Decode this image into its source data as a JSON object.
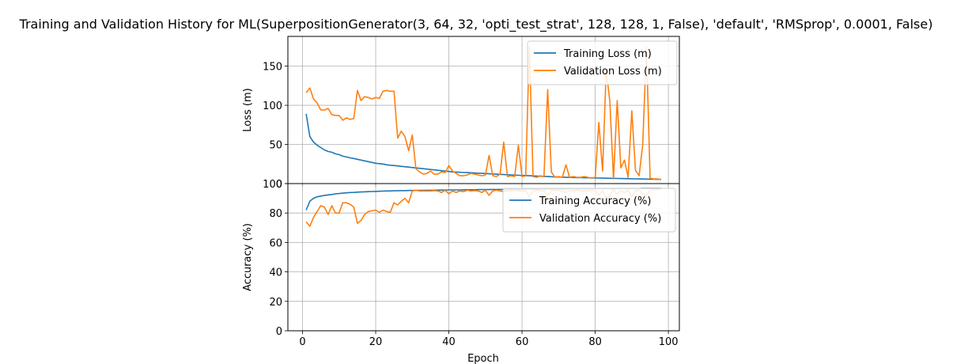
{
  "chart_data": [
    {
      "type": "line",
      "title": "Training and Validation History for ML(SuperpositionGenerator(3, 64, 32, 'opti_test_strat', 128, 128, 1, False), 'default', 'RMSprop', 0.0001, False)",
      "xlabel": "",
      "ylabel": "Loss (m)",
      "xlim": [
        -4,
        103
      ],
      "ylim": [
        0,
        188
      ],
      "xticks": [
        0,
        20,
        40,
        60,
        80,
        100
      ],
      "yticks": [
        0,
        50,
        100,
        150
      ],
      "show_xtick_labels": false,
      "grid": true,
      "legend": "top-right",
      "series": [
        {
          "name": "Training Loss (m)",
          "color": "#1f77b4",
          "x": [
            1,
            2,
            3,
            4,
            5,
            6,
            7,
            8,
            9,
            10,
            11,
            12,
            13,
            14,
            15,
            16,
            17,
            18,
            19,
            20,
            21,
            22,
            23,
            24,
            25,
            26,
            27,
            28,
            29,
            30,
            31,
            32,
            33,
            34,
            35,
            36,
            37,
            38,
            39,
            40,
            41,
            42,
            43,
            44,
            45,
            46,
            47,
            48,
            49,
            50,
            51,
            52,
            53,
            54,
            55,
            56,
            57,
            58,
            59,
            60,
            61,
            62,
            63,
            64,
            65,
            66,
            67,
            68,
            69,
            70,
            71,
            72,
            73,
            74,
            75,
            76,
            77,
            78,
            79,
            80,
            81,
            82,
            83,
            84,
            85,
            86,
            87,
            88,
            89,
            90,
            91,
            92,
            93,
            94,
            95,
            96,
            97,
            98
          ],
          "values": [
            89,
            60,
            53,
            49,
            46,
            43,
            41,
            40,
            38,
            37,
            35,
            34,
            33,
            32,
            31,
            30,
            29,
            28,
            27,
            26,
            25.5,
            25,
            24,
            23.5,
            23,
            22.5,
            22,
            21.5,
            21,
            20.5,
            20,
            19.5,
            19,
            18.5,
            18,
            17.5,
            17,
            16.5,
            16,
            15.5,
            15,
            14.8,
            14.5,
            14.2,
            14,
            13.8,
            13.5,
            13.2,
            13,
            12.8,
            12.5,
            12.2,
            12,
            11.8,
            11.5,
            11.3,
            11,
            10.8,
            10.6,
            10.4,
            10.2,
            10,
            9.8,
            9.6,
            9.4,
            9.2,
            9,
            8.8,
            8.6,
            8.4,
            8.2,
            8,
            7.9,
            7.8,
            7.7,
            7.6,
            7.5,
            7.4,
            7.3,
            7.2,
            7.1,
            7,
            6.9,
            6.8,
            6.7,
            6.6,
            6.5,
            6.4,
            6.3,
            6.2,
            6.1,
            6,
            5.9,
            5.8,
            5.7,
            5.6,
            5.5,
            5.4
          ]
        },
        {
          "name": "Validation Loss (m)",
          "color": "#ff7f0e",
          "x": [
            1,
            2,
            3,
            4,
            5,
            6,
            7,
            8,
            9,
            10,
            11,
            12,
            13,
            14,
            15,
            16,
            17,
            18,
            19,
            20,
            21,
            22,
            23,
            24,
            25,
            26,
            27,
            28,
            29,
            30,
            31,
            32,
            33,
            34,
            35,
            36,
            37,
            38,
            39,
            40,
            41,
            42,
            43,
            44,
            45,
            46,
            47,
            48,
            49,
            50,
            51,
            52,
            53,
            54,
            55,
            56,
            57,
            58,
            59,
            60,
            61,
            62,
            63,
            64,
            65,
            66,
            67,
            68,
            69,
            70,
            71,
            72,
            73,
            74,
            75,
            76,
            77,
            78,
            79,
            80,
            81,
            82,
            83,
            84,
            85,
            86,
            87,
            88,
            89,
            90,
            91,
            92,
            93,
            94,
            95,
            96,
            97,
            98
          ],
          "values": [
            116,
            122,
            108,
            103,
            94,
            94,
            96,
            88,
            87,
            87,
            81,
            84,
            82,
            83,
            119,
            106,
            111,
            110,
            108,
            110,
            109,
            118,
            119,
            118,
            118,
            58,
            67,
            60,
            42,
            62,
            19,
            15,
            12,
            13,
            16,
            12,
            12,
            15,
            14,
            23,
            16,
            13,
            10,
            10,
            11,
            13,
            12,
            11,
            10,
            11,
            36,
            10,
            9,
            12,
            53,
            9,
            10,
            9,
            49,
            9,
            10,
            175,
            9,
            8,
            10,
            9,
            120,
            15,
            8,
            9,
            8,
            24,
            8,
            9,
            8,
            8,
            9,
            8,
            7,
            8,
            78,
            16,
            145,
            105,
            6,
            106,
            20,
            30,
            8,
            93,
            17,
            10,
            50,
            175,
            7,
            6,
            6,
            5
          ]
        }
      ]
    },
    {
      "type": "line",
      "title": "",
      "xlabel": "Epoch",
      "ylabel": "Accuracy (%)",
      "xlim": [
        -4,
        103
      ],
      "ylim": [
        0,
        100
      ],
      "xticks": [
        0,
        20,
        40,
        60,
        80,
        100
      ],
      "yticks": [
        0,
        20,
        40,
        60,
        80,
        100
      ],
      "show_xtick_labels": true,
      "grid": true,
      "legend": "top-right",
      "series": [
        {
          "name": "Training Accuracy (%)",
          "color": "#1f77b4",
          "x": [
            1,
            2,
            3,
            4,
            5,
            6,
            7,
            8,
            9,
            10,
            11,
            12,
            13,
            14,
            15,
            16,
            17,
            18,
            19,
            20,
            21,
            22,
            23,
            24,
            25,
            26,
            27,
            28,
            29,
            30,
            31,
            32,
            33,
            34,
            35,
            36,
            37,
            38,
            39,
            40,
            41,
            42,
            43,
            44,
            45,
            46,
            47,
            48,
            49,
            50,
            51,
            52,
            53,
            54,
            55,
            56,
            57,
            58,
            59,
            60,
            61,
            62,
            63,
            64,
            65,
            66,
            67,
            68,
            69,
            70,
            71,
            72,
            73,
            74,
            75,
            76,
            77,
            78,
            79,
            80,
            81,
            82,
            83,
            84,
            85,
            86,
            87,
            88,
            89,
            90,
            91,
            92,
            93,
            94,
            95,
            96,
            97,
            98
          ],
          "values": [
            82,
            88,
            90,
            91,
            91.5,
            92,
            92.3,
            92.6,
            93,
            93.2,
            93.5,
            93.7,
            93.9,
            94,
            94.2,
            94.3,
            94.4,
            94.5,
            94.6,
            94.7,
            94.8,
            94.9,
            95,
            95,
            95.1,
            95.1,
            95.2,
            95.2,
            95.3,
            95.3,
            95.4,
            95.4,
            95.4,
            95.5,
            95.5,
            95.5,
            95.6,
            95.6,
            95.6,
            95.7,
            95.7,
            95.7,
            95.7,
            95.8,
            95.8,
            95.8,
            95.8,
            95.9,
            95.9,
            95.9,
            95.9,
            96,
            96,
            96,
            96,
            96,
            96.1,
            96.1,
            96.1,
            96.1,
            96.1,
            96.2,
            96.2,
            96.2,
            96.2,
            96.2,
            96.3,
            96.3,
            96.3,
            96.3,
            96.3,
            96.3,
            96.4,
            96.4,
            96.4,
            96.4,
            96.4,
            96.4,
            96.5,
            96.5,
            96.5,
            96.5,
            96.5,
            96.5,
            96.5,
            96.6,
            96.6,
            96.6,
            96.6,
            96.6,
            96.6,
            96.6,
            96.7,
            96.7,
            96.7,
            96.7,
            96.7,
            96.7
          ]
        },
        {
          "name": "Validation Accuracy (%)",
          "color": "#ff7f0e",
          "x": [
            1,
            2,
            3,
            4,
            5,
            6,
            7,
            8,
            9,
            10,
            11,
            12,
            13,
            14,
            15,
            16,
            17,
            18,
            19,
            20,
            21,
            22,
            23,
            24,
            25,
            26,
            27,
            28,
            29,
            30,
            31,
            32,
            33,
            34,
            35,
            36,
            37,
            38,
            39,
            40,
            41,
            42,
            43,
            44,
            45,
            46,
            47,
            48,
            49,
            50,
            51,
            52,
            53,
            54,
            55,
            56,
            57,
            58,
            59,
            60,
            61,
            62,
            63,
            64,
            65,
            66,
            67,
            68,
            69,
            70,
            71,
            72,
            73,
            74,
            75,
            76,
            77,
            78,
            79,
            80,
            81,
            82,
            83,
            84,
            85,
            86,
            87,
            88,
            89,
            90,
            91,
            92,
            93,
            94,
            95,
            96,
            97,
            98
          ],
          "values": [
            74,
            71,
            77,
            81,
            85,
            84,
            79,
            85,
            80,
            80,
            87,
            87,
            86,
            84,
            73,
            75,
            79,
            81,
            81.5,
            82,
            80.5,
            82,
            81,
            80.5,
            87,
            85.5,
            88,
            90,
            87,
            95,
            95.5,
            95,
            95,
            95,
            95,
            95.2,
            95,
            94,
            95.5,
            93,
            95,
            94,
            95,
            94.5,
            95.5,
            95,
            95.2,
            95,
            94,
            95.5,
            92,
            95,
            95.5,
            95,
            94.5,
            95,
            95.2,
            95.5,
            95,
            95,
            95,
            91,
            95,
            95.5,
            95,
            95,
            92,
            95,
            95.5,
            95,
            95,
            94,
            95,
            95,
            95.5,
            95,
            95,
            95,
            95.2,
            95.5,
            92,
            95,
            90,
            92,
            96,
            93,
            95,
            94,
            95.5,
            91,
            95,
            95.5,
            93,
            92,
            95.5,
            96,
            96,
            96.5
          ]
        }
      ]
    }
  ]
}
